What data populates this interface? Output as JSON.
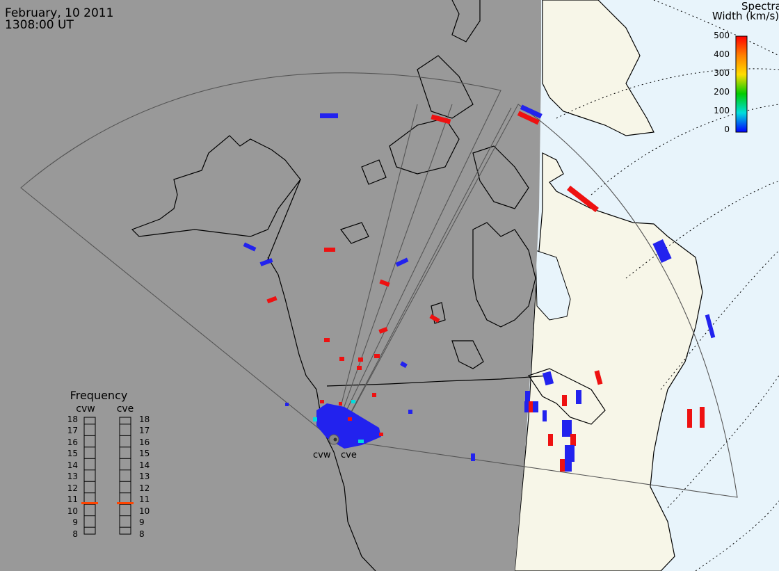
{
  "header": {
    "date": "February, 10 2011",
    "time": "1308:00 UT"
  },
  "colorbar": {
    "title_line1": "Spectral",
    "title_line2": "Width (km/s)",
    "ticks": [
      "500",
      "400",
      "300",
      "200",
      "100",
      "0"
    ],
    "colors": [
      "#ff0000",
      "#ff8000",
      "#ffff00",
      "#00cc00",
      "#00dddd",
      "#0000ff"
    ]
  },
  "frequency": {
    "title": "Frequency",
    "radars": [
      {
        "name": "cvw",
        "freq_mhz": 10.6,
        "marker_color": "#ff4400"
      },
      {
        "name": "cve",
        "freq_mhz": 10.6,
        "marker_color": "#ff4400"
      }
    ],
    "scale": [
      "18",
      "17",
      "16",
      "15",
      "14",
      "13",
      "12",
      "11",
      "10",
      "9",
      "8"
    ]
  },
  "stations": {
    "west": "cvw",
    "east": "cve"
  },
  "map": {
    "night_color": "#999999",
    "day_land_color": "#f7f6e8",
    "day_ocean_color": "#e8f4fb",
    "low_width_color": "#2222ee",
    "high_width_color": "#ee1111"
  }
}
